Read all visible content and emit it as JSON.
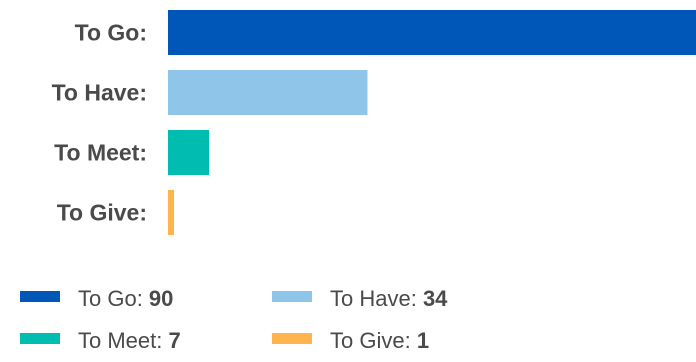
{
  "chart_data": {
    "type": "bar",
    "orientation": "horizontal",
    "categories": [
      "To Go:",
      "To Have:",
      "To Meet:",
      "To Give:"
    ],
    "values": [
      90,
      34,
      7,
      1
    ],
    "colors": [
      "#0057b8",
      "#8ec5e8",
      "#00bdb0",
      "#ffb44d"
    ],
    "xlim": [
      0,
      90
    ],
    "grid": false,
    "legend_position": "bottom",
    "legend": [
      {
        "label": "To Go: ",
        "value": "90",
        "color": "#0057b8"
      },
      {
        "label": "To Have: ",
        "value": "34",
        "color": "#8ec5e8"
      },
      {
        "label": "To Meet: ",
        "value": "7",
        "color": "#00bdb0"
      },
      {
        "label": "To Give: ",
        "value": "1",
        "color": "#ffb44d"
      }
    ]
  }
}
